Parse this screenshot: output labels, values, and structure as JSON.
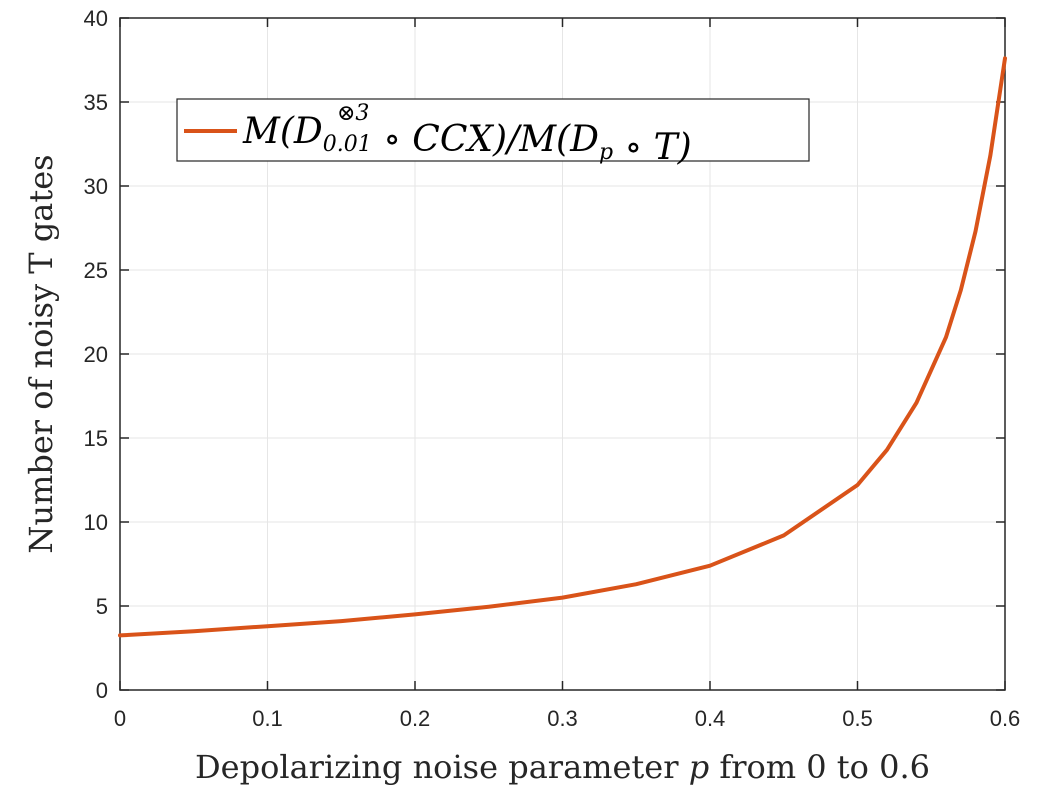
{
  "chart_data": {
    "type": "line",
    "xlabel": "Depolarizing noise parameter p from 0 to 0.6",
    "ylabel": "Number of noisy T gates",
    "xlim": [
      0,
      0.6
    ],
    "ylim": [
      0,
      40
    ],
    "xticks": [
      0,
      0.1,
      0.2,
      0.3,
      0.4,
      0.5,
      0.6
    ],
    "xtick_labels": [
      "0",
      "0.1",
      "0.2",
      "0.3",
      "0.4",
      "0.5",
      "0.6"
    ],
    "yticks": [
      0,
      5,
      10,
      15,
      20,
      25,
      30,
      35,
      40
    ],
    "ytick_labels": [
      "0",
      "5",
      "10",
      "15",
      "20",
      "25",
      "30",
      "35",
      "40"
    ],
    "grid": true,
    "legend_position": "top-left",
    "colors": {
      "series": "#D95319",
      "axis": "#262626",
      "grid": "#e6e6e6"
    },
    "series": [
      {
        "name": "M(D⊗3 0.01 ∘ CCX)/M(Dp ∘ T)",
        "x": [
          0,
          0.05,
          0.1,
          0.15,
          0.2,
          0.25,
          0.3,
          0.35,
          0.4,
          0.45,
          0.5,
          0.52,
          0.54,
          0.56,
          0.57,
          0.58,
          0.59,
          0.6
        ],
        "y": [
          3.25,
          3.5,
          3.8,
          4.1,
          4.5,
          4.95,
          5.5,
          6.3,
          7.4,
          9.2,
          12.2,
          14.3,
          17.1,
          21.0,
          23.8,
          27.3,
          31.8,
          37.6
        ]
      }
    ]
  }
}
